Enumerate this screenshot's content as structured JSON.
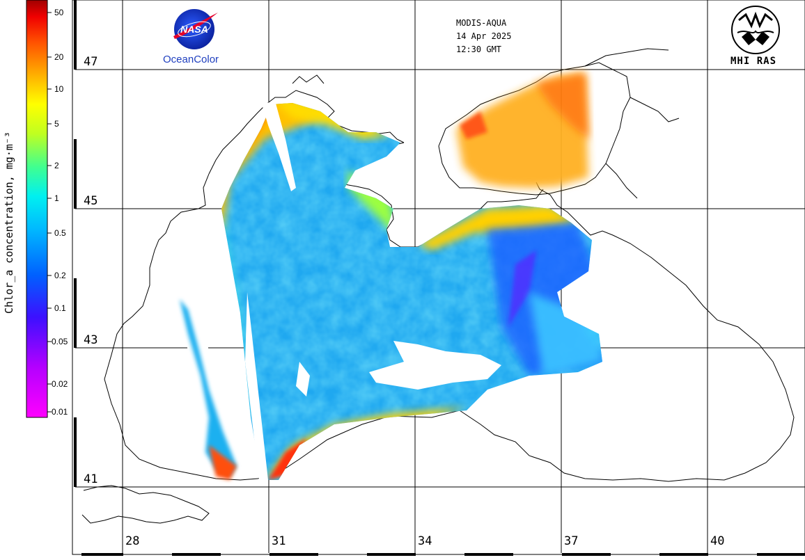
{
  "header": {
    "sensor": "MODIS-AQUA",
    "date": "14 Apr 2025",
    "time": "12:30 GMT",
    "logo_left_text": "OceanColor",
    "logo_left_badge": "NASA",
    "logo_right_text": "MHI RAS"
  },
  "colorbar": {
    "title": "Chlor_a concentration, mg·m⁻³",
    "ticks": [
      "50",
      "20",
      "10",
      "5",
      "2",
      "1",
      "0.5",
      "0.2",
      "0.1",
      "0.05",
      "0.02",
      "0.01"
    ],
    "scale": "log",
    "range": [
      0.01,
      60
    ],
    "colors": [
      "#ff00ff",
      "#b400ff",
      "#6a00ff",
      "#1a1aff",
      "#0070ff",
      "#00b0ff",
      "#00e0ff",
      "#00ffe0",
      "#60ff80",
      "#c8ff20",
      "#ffff00",
      "#ffc000",
      "#ff7000",
      "#ff2000",
      "#c00000"
    ]
  },
  "grid": {
    "lat_labels": [
      "47",
      "45",
      "43",
      "41"
    ],
    "lon_labels": [
      "28",
      "31",
      "34",
      "37",
      "40"
    ]
  },
  "map": {
    "region": "Black Sea",
    "variable": "Chlorophyll-a",
    "land_color": "#ffffff",
    "coast_color": "#000000"
  }
}
